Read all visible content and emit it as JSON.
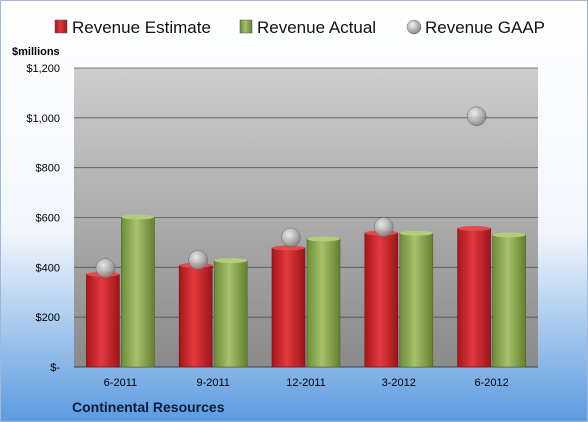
{
  "chart_data": {
    "type": "bar",
    "title": "",
    "ylabel": "$millions",
    "xlabel": "",
    "footer_label": "Continental Resources",
    "categories": [
      "6-2011",
      "9-2011",
      "12-2011",
      "3-2012",
      "6-2012"
    ],
    "series": [
      {
        "name": "Revenue Estimate",
        "kind": "bar",
        "color": "#d42a2f",
        "values": [
          372,
          408,
          478,
          538,
          556
        ]
      },
      {
        "name": "Revenue Actual",
        "kind": "bar",
        "color": "#8faa55",
        "values": [
          602,
          427,
          514,
          537,
          530
        ]
      },
      {
        "name": "Revenue GAAP",
        "kind": "marker",
        "color": "#b8b8b8",
        "values": [
          397,
          430,
          520,
          562,
          1006
        ]
      }
    ],
    "ylim": [
      0,
      1200
    ],
    "yticks": [
      0,
      200,
      400,
      600,
      800,
      1000,
      1200
    ],
    "ytick_labels": [
      "$-",
      "$200",
      "$400",
      "$600",
      "$800",
      "$1,000",
      "$1,200"
    ],
    "grid": true,
    "legend_position": "top"
  },
  "colors": {
    "background_top": "#ffffff",
    "background_bottom": "#5b9be0",
    "plot_top": "#c8c8c8",
    "plot_bottom": "#8a8a8a"
  }
}
